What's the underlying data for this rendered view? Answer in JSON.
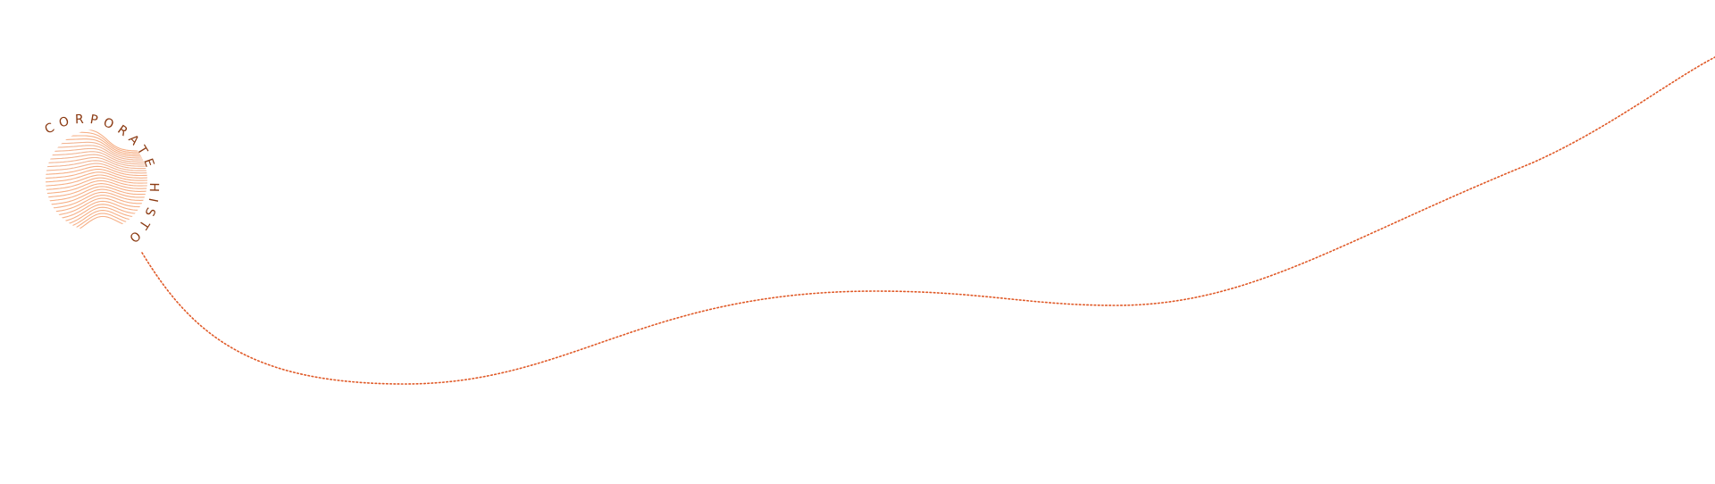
{
  "logo": {
    "text": "CORPORATE HISTORY",
    "text_color": "#8b3a12",
    "globe_line_color": "#f5a77a",
    "globe_fold_color": "#e8783a",
    "icon": "wave-globe-icon"
  },
  "timeline": {
    "line_color": "#e05a28",
    "style": "dotted"
  }
}
